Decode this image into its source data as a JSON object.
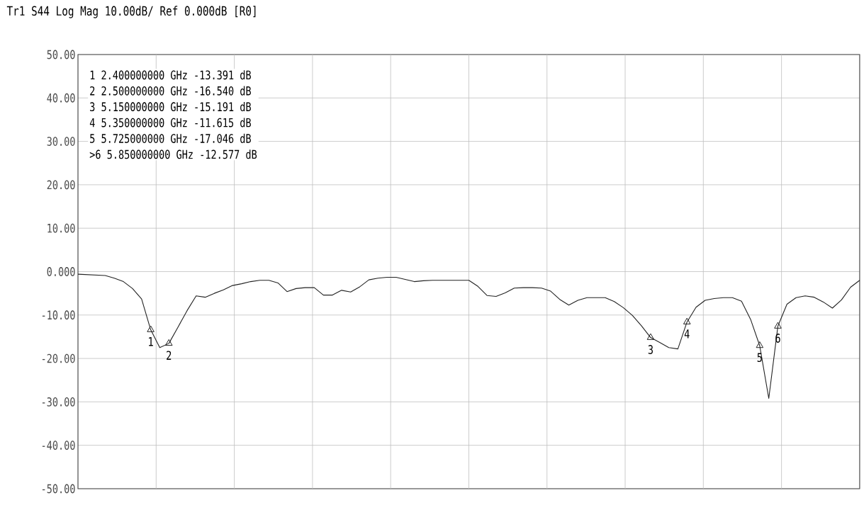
{
  "chart_data": {
    "type": "line",
    "title": "Tr1 S44 Log Mag 10.00dB/ Ref 0.000dB [R0]",
    "categories": [
      null,
      null,
      null,
      null,
      null,
      null,
      null,
      null,
      null,
      null,
      null,
      null,
      null,
      null,
      null,
      null,
      null,
      null,
      null,
      null,
      null,
      null,
      null,
      null,
      null,
      null,
      null,
      null,
      null,
      null,
      null,
      null,
      null,
      null,
      null,
      null,
      null,
      null,
      null,
      null,
      null,
      null,
      null,
      null,
      null,
      null,
      null,
      null,
      null,
      null,
      null,
      null,
      null,
      null,
      null,
      null,
      null,
      null,
      null,
      null,
      null,
      null,
      null,
      null,
      null,
      null,
      null,
      null,
      null,
      null,
      null,
      null,
      null,
      null,
      null,
      null,
      null,
      null,
      null,
      null,
      null,
      null,
      null,
      null,
      null,
      null,
      null
    ],
    "series": [
      {
        "color": "#222222",
        "values": [
          -0.6,
          -0.7,
          -0.8,
          -0.9,
          -1.5,
          -2.3,
          -3.9,
          -6.3,
          -13.391,
          -17.5,
          -16.54,
          -12.8,
          -9.0,
          -5.6,
          -5.9,
          -5.0,
          -4.2,
          -3.2,
          -2.8,
          -2.3,
          -2.0,
          -2.0,
          -2.6,
          -4.6,
          -3.9,
          -3.7,
          -3.7,
          -5.4,
          -5.4,
          -4.3,
          -4.7,
          -3.5,
          -1.9,
          -1.5,
          -1.3,
          -1.3,
          -1.8,
          -2.3,
          -2.1,
          -2.0,
          -2.0,
          -2.0,
          -2.0,
          -2.0,
          -3.4,
          -5.5,
          -5.7,
          -4.9,
          -3.8,
          -3.7,
          -3.7,
          -3.8,
          -4.5,
          -6.4,
          -7.7,
          -6.6,
          -6.0,
          -6.0,
          -6.0,
          -6.9,
          -8.3,
          -10.1,
          -12.5,
          -15.191,
          -16.3,
          -17.5,
          -17.8,
          -11.615,
          -8.2,
          -6.6,
          -6.2,
          -6.0,
          -6.0,
          -6.8,
          -11.0,
          -17.046,
          -29.2,
          -12.577,
          -7.5,
          -6.0,
          -5.6,
          -5.9,
          -7.0,
          -8.4,
          -6.5,
          -3.6,
          -2.0
        ]
      },
      {
        "type": "scatter",
        "color": "#222222",
        "marker": "triangle",
        "values": [
          null,
          null,
          null,
          null,
          null,
          null,
          null,
          null,
          -13.391,
          null,
          -16.54,
          null,
          null,
          null,
          null,
          null,
          null,
          null,
          null,
          null,
          null,
          null,
          null,
          null,
          null,
          null,
          null,
          null,
          null,
          null,
          null,
          null,
          null,
          null,
          null,
          null,
          null,
          null,
          null,
          null,
          null,
          null,
          null,
          null,
          null,
          null,
          null,
          null,
          null,
          null,
          null,
          null,
          null,
          null,
          null,
          null,
          null,
          null,
          null,
          null,
          null,
          null,
          null,
          -15.191,
          null,
          null,
          null,
          -11.615,
          null,
          null,
          null,
          null,
          null,
          null,
          null,
          -17.046,
          null,
          -12.577,
          null,
          null,
          null,
          null,
          null,
          null,
          null,
          null,
          null
        ],
        "name": null
      }
    ],
    "ylim": [
      -50,
      50
    ],
    "yticks": [
      {
        "value": 50,
        "label": "50.00"
      },
      {
        "value": 40,
        "label": "40.00"
      },
      {
        "value": 30,
        "label": "30.00"
      },
      {
        "value": 20,
        "label": "20.00"
      },
      {
        "value": 10,
        "label": "10.00"
      },
      {
        "value": 0,
        "label": "0.000"
      },
      {
        "value": -10,
        "label": "-10.00"
      },
      {
        "value": -20,
        "label": "-20.00"
      },
      {
        "value": -30,
        "label": "-30.00"
      },
      {
        "value": -40,
        "label": "-40.00"
      },
      {
        "value": -50,
        "label": "-50.00"
      }
    ],
    "grid": true,
    "annotations": [
      "1 2.400000000 GHz -13.391 dB",
      "2 2.500000000 GHz -16.540 dB",
      "3 5.150000000 GHz -15.191 dB",
      "4 5.350000000 GHz -11.615 dB",
      "5 5.725000000 GHz -17.046 dB",
      ">6 5.850000000 GHz -12.577 dB",
      {
        "text": "1",
        "y": -13.391
      },
      {
        "text": "2",
        "y": -16.54
      },
      {
        "text": "3",
        "y": -15.191
      },
      {
        "text": "4",
        "y": -11.615
      },
      {
        "text": "5",
        "y": -17.046
      },
      {
        "text": "6",
        "y": -12.577
      }
    ]
  }
}
